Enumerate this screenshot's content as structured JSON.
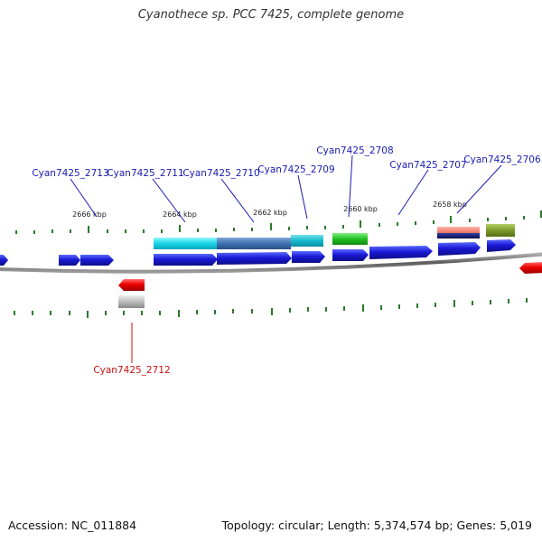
{
  "title": "Cyanothece sp. PCC 7425, complete genome",
  "footer": {
    "accession": "Accession: NC_011884",
    "summary": "Topology: circular; Length: 5,374,574 bp; Genes: 5,019"
  },
  "colors": {
    "forward_gene": "#1a1ad6",
    "reverse_gene": "#ee0000",
    "label_forward": "#1a1ab4",
    "label_reverse": "#cc1111",
    "backbone": "#666666",
    "ticks": "#2a7a2a"
  },
  "ruler_labels": [
    "2666 kbp",
    "2664 kbp",
    "2662 kbp",
    "2660 kbp",
    "2658 kbp"
  ],
  "gene_labels": [
    {
      "text": "Cyan7425_2713",
      "strand": "forward"
    },
    {
      "text": "Cyan7425_2711",
      "strand": "forward"
    },
    {
      "text": "Cyan7425_2710",
      "strand": "forward"
    },
    {
      "text": "Cyan7425_2709",
      "strand": "forward"
    },
    {
      "text": "Cyan7425_2708",
      "strand": "forward"
    },
    {
      "text": "Cyan7425_2707",
      "strand": "forward"
    },
    {
      "text": "Cyan7425_2706",
      "strand": "forward"
    },
    {
      "text": "Cyan7425_2712",
      "strand": "reverse"
    }
  ]
}
